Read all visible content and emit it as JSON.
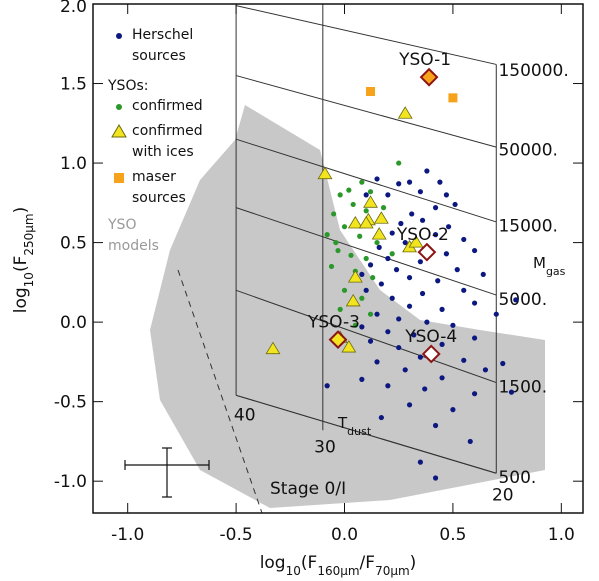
{
  "chart_data": {
    "type": "scatter",
    "xlabel": [
      "log",
      "10",
      "(F",
      "160µm",
      "/F",
      "70µm",
      ")"
    ],
    "ylabel": [
      "log",
      "10",
      "(F",
      "250µm",
      ")"
    ],
    "xlim": [
      -1.16,
      1.1
    ],
    "ylim": [
      -1.2,
      2.0
    ],
    "xticks": [
      {
        "value": -1.0,
        "label": "-1.0"
      },
      -0.5,
      {
        "value": 0.0,
        "label": "0.0"
      },
      0.5,
      {
        "value": 1.0,
        "label": "1.0"
      }
    ],
    "yticks": [
      {
        "value": -1.0,
        "label": "-1.0"
      },
      -0.5,
      {
        "value": 0.0,
        "label": "0.0"
      },
      0.5,
      {
        "value": 1.0,
        "label": "1.0"
      },
      1.5,
      {
        "value": 2.0,
        "label": "2.0"
      }
    ],
    "legend_group_title": "YSOs:",
    "models_label": "YSO models",
    "series": [
      {
        "name": "Herschel sources",
        "color": "#0c1880",
        "marker": "circle",
        "x": [
          0.38,
          0.44,
          0.3,
          0.25,
          0.35,
          0.47,
          0.2,
          0.42,
          0.51,
          0.31,
          0.36,
          0.26,
          0.48,
          0.22,
          0.42,
          0.55,
          0.28,
          0.16,
          0.47,
          0.6,
          0.2,
          0.35,
          0.12,
          0.52,
          0.24,
          0.64,
          0.08,
          0.3,
          0.43,
          0.17,
          0.55,
          0.1,
          0.36,
          0.22,
          0.6,
          0.05,
          0.3,
          0.45,
          0.15,
          0.7,
          0.25,
          0.38,
          0.5,
          0.08,
          0.2,
          0.32,
          0.6,
          0.12,
          0.45,
          0.25,
          0.35,
          0.55,
          0.15,
          0.65,
          0.28,
          0.45,
          0.08,
          0.37,
          0.2,
          0.6,
          -0.08,
          0.3,
          0.5,
          0.17,
          0.42,
          0.58,
          0.35,
          0.42,
          0.79,
          0.77,
          0.73,
          0.1,
          0.15
        ],
        "y": [
          0.95,
          0.88,
          0.88,
          0.87,
          0.82,
          0.8,
          0.8,
          0.72,
          0.74,
          0.68,
          0.64,
          0.62,
          0.6,
          0.56,
          0.55,
          0.52,
          0.5,
          0.47,
          0.43,
          0.45,
          0.4,
          0.38,
          0.36,
          0.33,
          0.33,
          0.3,
          0.3,
          0.28,
          0.26,
          0.24,
          0.2,
          0.2,
          0.18,
          0.15,
          0.12,
          0.12,
          0.1,
          0.08,
          0.05,
          0.05,
          0.02,
          0.0,
          -0.02,
          -0.03,
          -0.06,
          -0.08,
          -0.1,
          -0.12,
          -0.14,
          -0.16,
          -0.22,
          -0.24,
          -0.25,
          -0.3,
          -0.3,
          -0.35,
          -0.36,
          -0.42,
          -0.4,
          -0.45,
          -0.4,
          -0.52,
          -0.55,
          -0.6,
          -0.65,
          -0.75,
          -0.88,
          -0.98,
          0.14,
          -0.44,
          -0.26,
          0.8,
          0.9
        ]
      },
      {
        "name": "confirmed",
        "color": "#2a982a",
        "marker": "circle",
        "x": [
          0.25,
          0.08,
          0.02,
          -0.02,
          0.12,
          0.04,
          -0.05,
          0.1,
          0.18,
          0.0,
          -0.08,
          0.07,
          0.15,
          -0.03,
          0.03,
          0.1,
          0.22,
          -0.06,
          0.05,
          0.13,
          0.0,
          0.08,
          -0.02,
          0.12,
          0.05,
          -0.04
        ],
        "y": [
          1.0,
          0.88,
          0.83,
          0.8,
          0.82,
          0.74,
          0.68,
          0.7,
          0.72,
          0.6,
          0.55,
          0.54,
          0.5,
          0.45,
          0.42,
          0.4,
          0.43,
          0.35,
          0.32,
          0.28,
          0.2,
          0.15,
          0.08,
          0.05,
          -0.02,
          0.5
        ]
      },
      {
        "name": "confirmed with ices",
        "color": "#f2e41e",
        "marker": "triangle",
        "x": [
          0.28,
          -0.09,
          0.11,
          0.12,
          0.17,
          0.16,
          0.3,
          0.33,
          0.04,
          0.05,
          -0.02,
          0.02,
          -0.33,
          0.05,
          0.1
        ],
        "y": [
          1.31,
          0.93,
          0.64,
          0.75,
          0.65,
          0.55,
          0.47,
          0.5,
          0.13,
          0.28,
          -0.1,
          -0.16,
          -0.17,
          0.62,
          0.62
        ]
      },
      {
        "name": "maser sources",
        "color": "#f7a21b",
        "marker": "square",
        "x": [
          0.12,
          0.5
        ],
        "y": [
          1.45,
          1.41
        ]
      }
    ],
    "labeled_sources": [
      {
        "label": "YSO-1",
        "x": 0.39,
        "y": 1.54,
        "fill": "#f7a21b"
      },
      {
        "label": "YSO-2",
        "x": 0.38,
        "y": 0.44,
        "fill": "#ffffff"
      },
      {
        "label": "YSO-3",
        "x": -0.03,
        "y": -0.11,
        "fill": "#f2e41e"
      },
      {
        "label": "YSO-4",
        "x": 0.4,
        "y": -0.2,
        "fill": "#ffffff"
      }
    ],
    "mgas_labels": [
      "150000.",
      "50000.",
      "15000.",
      "5000.",
      "1500.",
      "500."
    ],
    "tdust_labels": [
      "40",
      "30",
      "20"
    ],
    "mgas_title": [
      "M",
      "gas"
    ],
    "tdust_title": [
      "T",
      "dust"
    ],
    "stage_label": "Stage 0/I"
  }
}
